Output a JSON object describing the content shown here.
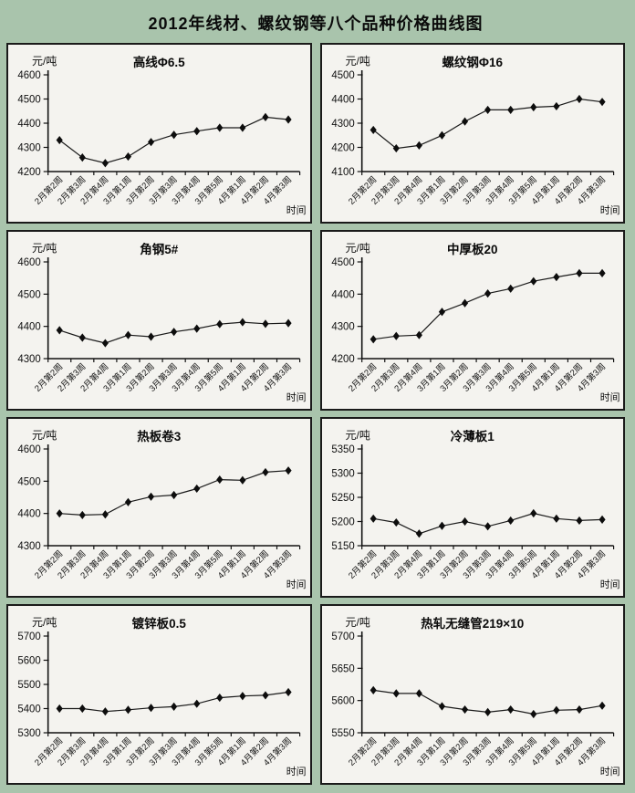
{
  "page": {
    "title": "2012年线材、螺纹钢等八个品种价格曲线图",
    "background_color": "#a9c4ac",
    "panel_background": "#f4f3ef",
    "line_color": "#1a1a1a",
    "marker": "diamond"
  },
  "chart_data": [
    {
      "type": "line",
      "title": "高线Φ6.5",
      "unit": "元/吨",
      "xlabel": "时间",
      "ylabel": "元/吨",
      "grid": false,
      "legend": "none",
      "ylim": [
        4200,
        4600
      ],
      "yticks": [
        4200,
        4300,
        4400,
        4500,
        4600
      ],
      "categories": [
        "2月第2周",
        "2月第3周",
        "2月第4周",
        "3月第1周",
        "3月第2周",
        "3月第3周",
        "3月第4周",
        "3月第5周",
        "4月第1周",
        "4月第2周",
        "4月第3周"
      ],
      "values": [
        4330,
        4258,
        4235,
        4262,
        4322,
        4352,
        4367,
        4381,
        4381,
        4425,
        4415
      ]
    },
    {
      "type": "line",
      "title": "螺纹钢Φ16",
      "unit": "元/吨",
      "xlabel": "时间",
      "ylabel": "元/吨",
      "grid": false,
      "legend": "none",
      "ylim": [
        4100,
        4500
      ],
      "yticks": [
        4100,
        4200,
        4300,
        4400,
        4500
      ],
      "categories": [
        "2月第2周",
        "2月第3周",
        "2月第4周",
        "3月第1周",
        "3月第2周",
        "3月第3周",
        "3月第4周",
        "3月第5周",
        "4月第1周",
        "4月第2周",
        "4月第3周"
      ],
      "values": [
        4272,
        4196,
        4208,
        4250,
        4307,
        4355,
        4355,
        4366,
        4370,
        4400,
        4388
      ]
    },
    {
      "type": "line",
      "title": "角钢5#",
      "unit": "元/吨",
      "xlabel": "时间",
      "ylabel": "元/吨",
      "grid": false,
      "legend": "none",
      "ylim": [
        4300,
        4600
      ],
      "yticks": [
        4300,
        4400,
        4500,
        4600
      ],
      "categories": [
        "2月第2周",
        "2月第3周",
        "2月第4周",
        "3月第1周",
        "3月第2周",
        "3月第3周",
        "3月第4周",
        "3月第5周",
        "4月第1周",
        "4月第2周",
        "4月第3周"
      ],
      "values": [
        4388,
        4365,
        4348,
        4373,
        4368,
        4383,
        4393,
        4407,
        4413,
        4408,
        4410
      ]
    },
    {
      "type": "line",
      "title": "中厚板20",
      "unit": "元/吨",
      "xlabel": "时间",
      "ylabel": "元/吨",
      "grid": false,
      "legend": "none",
      "ylim": [
        4200,
        4500
      ],
      "yticks": [
        4200,
        4300,
        4400,
        4500
      ],
      "categories": [
        "2月第2周",
        "2月第3周",
        "2月第4周",
        "3月第1周",
        "3月第2周",
        "3月第3周",
        "3月第4周",
        "3月第5周",
        "4月第1周",
        "4月第2周",
        "4月第3周"
      ],
      "values": [
        4260,
        4270,
        4273,
        4345,
        4372,
        4402,
        4417,
        4440,
        4453,
        4465,
        4465
      ]
    },
    {
      "type": "line",
      "title": "热板卷3",
      "unit": "元/吨",
      "xlabel": "时间",
      "ylabel": "元/吨",
      "grid": false,
      "legend": "none",
      "ylim": [
        4300,
        4600
      ],
      "yticks": [
        4300,
        4400,
        4500,
        4600
      ],
      "categories": [
        "2月第2周",
        "2月第3周",
        "2月第4周",
        "3月第1周",
        "3月第2周",
        "3月第3周",
        "3月第4周",
        "3月第5周",
        "4月第1周",
        "4月第2周",
        "4月第3周"
      ],
      "values": [
        4400,
        4395,
        4397,
        4435,
        4452,
        4457,
        4477,
        4505,
        4503,
        4528,
        4533
      ]
    },
    {
      "type": "line",
      "title": "冷薄板1",
      "unit": "元/吨",
      "xlabel": "时间",
      "ylabel": "元/吨",
      "grid": false,
      "legend": "none",
      "ylim": [
        5150,
        5350
      ],
      "yticks": [
        5150,
        5200,
        5250,
        5300,
        5350
      ],
      "categories": [
        "2月第2周",
        "2月第3周",
        "2月第4周",
        "3月第1周",
        "3月第2周",
        "3月第3周",
        "3月第4周",
        "3月第5周",
        "4月第1周",
        "4月第2周",
        "4月第3周"
      ],
      "values": [
        5206,
        5198,
        5175,
        5191,
        5200,
        5190,
        5202,
        5217,
        5206,
        5202,
        5204
      ]
    },
    {
      "type": "line",
      "title": "镀锌板0.5",
      "unit": "元/吨",
      "xlabel": "时间",
      "ylabel": "元/吨",
      "grid": false,
      "legend": "none",
      "ylim": [
        5300,
        5700
      ],
      "yticks": [
        5300,
        5400,
        5500,
        5600,
        5700
      ],
      "categories": [
        "2月第2周",
        "2月第3周",
        "2月第4周",
        "3月第1周",
        "3月第2周",
        "3月第3周",
        "3月第4周",
        "3月第5周",
        "4月第1周",
        "4月第2周",
        "4月第3周"
      ],
      "values": [
        5400,
        5400,
        5388,
        5395,
        5403,
        5408,
        5420,
        5445,
        5452,
        5455,
        5468
      ]
    },
    {
      "type": "line",
      "title": "热轧无缝管219×10",
      "unit": "元/吨",
      "xlabel": "时间",
      "ylabel": "元/吨",
      "grid": false,
      "legend": "none",
      "ylim": [
        5550,
        5700
      ],
      "yticks": [
        5550,
        5600,
        5650,
        5700
      ],
      "categories": [
        "2月第2周",
        "2月第3周",
        "2月第4周",
        "3月第1周",
        "3月第2周",
        "3月第3周",
        "3月第4周",
        "3月第5周",
        "4月第1周",
        "4月第2周",
        "4月第3周"
      ],
      "values": [
        5616,
        5611,
        5611,
        5591,
        5586,
        5582,
        5586,
        5579,
        5585,
        5586,
        5592
      ]
    }
  ]
}
